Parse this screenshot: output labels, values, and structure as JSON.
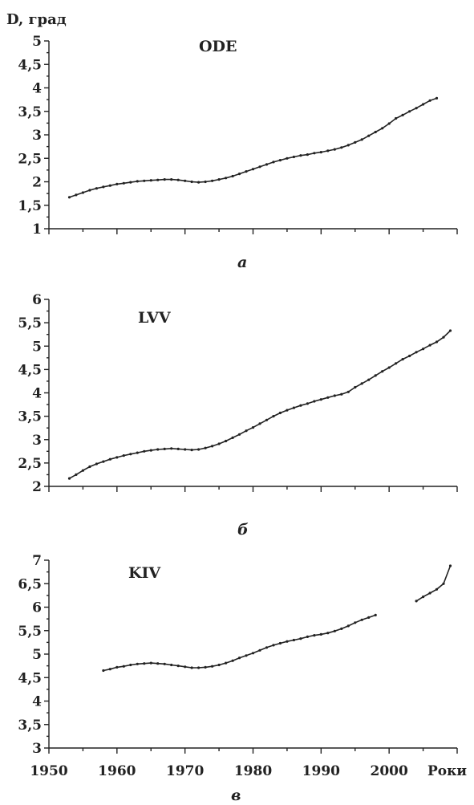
{
  "chart_data": [
    {
      "type": "line",
      "panel_label": "а",
      "series_label": "ODE",
      "ylabel": "D, град",
      "xlabel": "",
      "xlim": [
        1950,
        2010
      ],
      "ylim": [
        1,
        5
      ],
      "yticks": [
        "1",
        "1,5",
        "2",
        "2,5",
        "3",
        "3,5",
        "4",
        "4,5",
        "5"
      ],
      "grid": false,
      "segments": [
        {
          "x": [
            1953,
            1954,
            1955,
            1956,
            1957,
            1958,
            1959,
            1960,
            1961,
            1962,
            1963,
            1964,
            1965,
            1966,
            1967,
            1968,
            1969,
            1970,
            1971,
            1972,
            1973,
            1974,
            1975,
            1976,
            1977,
            1978,
            1979,
            1980,
            1981,
            1982,
            1983,
            1984,
            1985,
            1986,
            1987,
            1988,
            1989,
            1990,
            1991,
            1992,
            1993,
            1994,
            1995,
            1996,
            1997,
            1998,
            1999,
            2000,
            2001,
            2002,
            2003,
            2004,
            2005,
            2006,
            2007
          ],
          "y": [
            1.67,
            1.72,
            1.77,
            1.82,
            1.86,
            1.89,
            1.92,
            1.95,
            1.97,
            1.99,
            2.01,
            2.02,
            2.03,
            2.04,
            2.05,
            2.05,
            2.04,
            2.02,
            2.0,
            1.99,
            2.0,
            2.02,
            2.05,
            2.08,
            2.12,
            2.17,
            2.22,
            2.27,
            2.32,
            2.37,
            2.42,
            2.46,
            2.5,
            2.53,
            2.56,
            2.58,
            2.61,
            2.63,
            2.66,
            2.69,
            2.73,
            2.78,
            2.84,
            2.9,
            2.98,
            3.06,
            3.14,
            3.24,
            3.35,
            3.42,
            3.5,
            3.57,
            3.65,
            3.73,
            3.78
          ]
        }
      ]
    },
    {
      "type": "line",
      "panel_label": "б",
      "series_label": "LVV",
      "ylabel": "",
      "xlabel": "",
      "xlim": [
        1950,
        2010
      ],
      "ylim": [
        2,
        6
      ],
      "yticks": [
        "2",
        "2,5",
        "3",
        "3,5",
        "4",
        "4,5",
        "5",
        "5,5",
        "6"
      ],
      "grid": false,
      "segments": [
        {
          "x": [
            1953,
            1954,
            1955,
            1956,
            1957,
            1958,
            1959,
            1960,
            1961,
            1962,
            1963,
            1964,
            1965,
            1966,
            1967,
            1968,
            1969,
            1970,
            1971,
            1972,
            1973,
            1974,
            1975,
            1976,
            1977,
            1978,
            1979,
            1980,
            1981,
            1982,
            1983,
            1984,
            1985,
            1986,
            1987,
            1988,
            1989,
            1990,
            1991,
            1992,
            1993,
            1994,
            1995,
            1996,
            1997,
            1998,
            1999,
            2000,
            2001,
            2002,
            2003,
            2004,
            2005,
            2006,
            2007,
            2008,
            2009
          ],
          "y": [
            2.17,
            2.25,
            2.34,
            2.42,
            2.48,
            2.53,
            2.58,
            2.62,
            2.66,
            2.69,
            2.72,
            2.75,
            2.77,
            2.79,
            2.8,
            2.81,
            2.8,
            2.79,
            2.78,
            2.79,
            2.82,
            2.86,
            2.91,
            2.97,
            3.04,
            3.11,
            3.19,
            3.26,
            3.34,
            3.42,
            3.5,
            3.57,
            3.63,
            3.68,
            3.73,
            3.77,
            3.82,
            3.86,
            3.9,
            3.94,
            3.97,
            4.02,
            4.12,
            4.2,
            4.28,
            4.37,
            4.46,
            4.54,
            4.63,
            4.72,
            4.79,
            4.87,
            4.94,
            5.02,
            5.09,
            5.19,
            5.33
          ]
        }
      ]
    },
    {
      "type": "line",
      "panel_label": "в",
      "series_label": "KIV",
      "ylabel": "",
      "xlabel": "Роки",
      "xlim": [
        1950,
        2010
      ],
      "ylim": [
        3,
        7
      ],
      "yticks": [
        "3",
        "3,5",
        "4",
        "4,5",
        "5",
        "5,5",
        "6",
        "6,5",
        "7"
      ],
      "xticks": [
        "1950",
        "1960",
        "1970",
        "1980",
        "1990",
        "2000"
      ],
      "grid": false,
      "segments": [
        {
          "x": [
            1958,
            1959,
            1960,
            1961,
            1962,
            1963,
            1964,
            1965,
            1966,
            1967,
            1968,
            1969,
            1970,
            1971,
            1972,
            1973,
            1974,
            1975,
            1976,
            1977,
            1978,
            1979,
            1980,
            1981,
            1982,
            1983,
            1984,
            1985,
            1986,
            1987,
            1988,
            1989,
            1990,
            1991,
            1992,
            1993,
            1994,
            1995,
            1996,
            1997,
            1998
          ],
          "y": [
            4.65,
            4.68,
            4.72,
            4.74,
            4.77,
            4.79,
            4.8,
            4.81,
            4.8,
            4.79,
            4.77,
            4.75,
            4.73,
            4.71,
            4.71,
            4.72,
            4.74,
            4.77,
            4.81,
            4.86,
            4.92,
            4.97,
            5.02,
            5.08,
            5.14,
            5.19,
            5.23,
            5.27,
            5.3,
            5.33,
            5.37,
            5.4,
            5.42,
            5.45,
            5.49,
            5.54,
            5.6,
            5.67,
            5.73,
            5.78,
            5.83
          ]
        },
        {
          "x": [
            2004,
            2005,
            2006,
            2007,
            2008,
            2009
          ],
          "y": [
            6.13,
            6.22,
            6.3,
            6.38,
            6.5,
            6.88
          ]
        }
      ]
    }
  ]
}
